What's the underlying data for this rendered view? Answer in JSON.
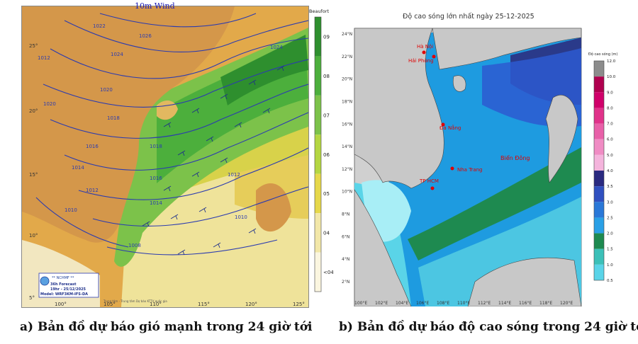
{
  "wind_map": {
    "title": "10m Wind",
    "scale_unit": "Beaufort",
    "scale_labels": [
      "09",
      "08",
      "07",
      "06",
      "05",
      "04",
      "<04"
    ],
    "scale_colors": [
      "#2e8f2e",
      "#4caf3c",
      "#7cc24a",
      "#b4d642",
      "#e6d84a",
      "#f2e7a8",
      "#fbf6e0"
    ],
    "lon_labels": [
      "100°",
      "105°",
      "110°",
      "115°",
      "120°",
      "125°"
    ],
    "lat_labels": [
      "25°",
      "20°",
      "15°",
      "10°",
      "5°"
    ],
    "isobar_labels": [
      "1026",
      "1022",
      "1024",
      "1020",
      "1018",
      "1016",
      "1014",
      "1012",
      "1010",
      "1008",
      "1008",
      "1012",
      "1016",
      "1020",
      "1024",
      "1018",
      "1016",
      "1014",
      "1012",
      "1010"
    ],
    "logo_label": "** NCHMF **",
    "forecast_lines": [
      "36h Forecast",
      "19hr - 25/12/2025",
      "Model: WRF3KM-IFS-DA"
    ],
    "footer_text": "Trung tâm - Trung tâm Dự báo KTTV quốc gia"
  },
  "wave_map": {
    "title": "Độ cao sóng lớn nhất ngày 25-12-2025",
    "scale_unit": "Độ cao sóng (m)",
    "scale_labels": [
      "12.0",
      "10.0",
      "9.0",
      "8.0",
      "7.0",
      "6.0",
      "5.0",
      "4.0",
      "3.5",
      "3.0",
      "2.5",
      "2.0",
      "1.5",
      "1.0",
      "0.5"
    ],
    "scale_colors": [
      "#8c8c8c",
      "#b0004f",
      "#d0006a",
      "#e0328a",
      "#e860a8",
      "#f08cc4",
      "#f4b4dc",
      "#2a2a80",
      "#3050c0",
      "#2a78d8",
      "#2aa0e6",
      "#1e8a50",
      "#3cc0b8",
      "#5ad4e8",
      "#a8eef6"
    ],
    "lat_labels": [
      "24°N",
      "22°N",
      "20°N",
      "18°N",
      "16°N",
      "14°N",
      "12°N",
      "10°N",
      "8°N",
      "6°N",
      "4°N",
      "2°N"
    ],
    "lon_labels": [
      "100°E",
      "102°E",
      "104°E",
      "106°E",
      "108°E",
      "110°E",
      "112°E",
      "114°E",
      "116°E",
      "118°E",
      "120°E"
    ],
    "place_labels": [
      "Hà Nội",
      "Hải Phòng",
      "Đà Nẵng",
      "Nha Trang",
      "TP HCM",
      "Biển Đông"
    ]
  },
  "captions": {
    "a": "a) Bản đồ dự báo gió mạnh trong 24 giờ tới",
    "b": "b) Bản đồ dự báo độ cao sóng trong 24 giờ tới"
  }
}
